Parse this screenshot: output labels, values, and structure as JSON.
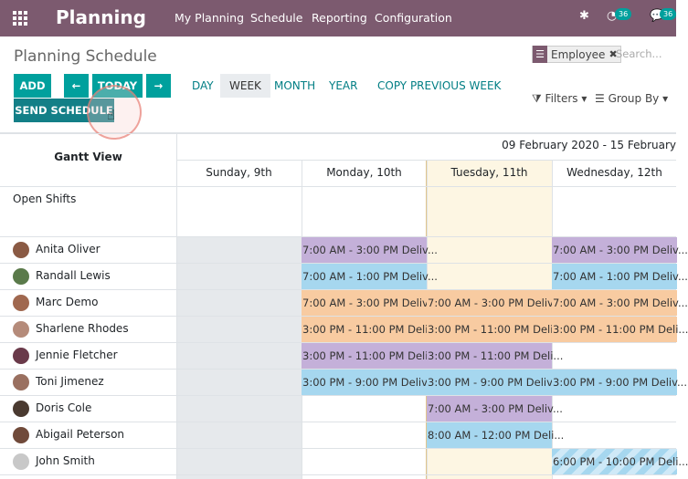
{
  "topbar": {
    "brand": "Planning",
    "menu": [
      "My Planning",
      "Schedule",
      "Reporting",
      "Configuration"
    ],
    "activity_count": "36",
    "messages_count": "36"
  },
  "control_panel": {
    "title": "Planning Schedule",
    "facet": "Employee",
    "search_placeholder": "Search...",
    "buttons": {
      "add": "ADD",
      "prev": "←",
      "today": "TODAY",
      "next": "→",
      "send": "SEND SCHEDULE"
    },
    "ranges": [
      "DAY",
      "WEEK",
      "MONTH",
      "YEAR"
    ],
    "active_range": "WEEK",
    "copy_week": "COPY PREVIOUS WEEK",
    "filters": "Filters",
    "group_by": "Group By"
  },
  "gantt": {
    "view_label": "Gantt View",
    "range_label": "09 February 2020 - 15 February",
    "days": [
      "Sunday, 9th",
      "Monday, 10th",
      "Tuesday, 11th",
      "Wednesday, 12th"
    ],
    "open_shifts": "Open Shifts",
    "rows": [
      {
        "name": "Anita Oliver",
        "avatar": "#8a5a44",
        "shifts": [
          {
            "day": 1,
            "text": "7:00 AM - 3:00 PM Deliv...",
            "color": "pur"
          },
          {
            "day": 3,
            "text": "7:00 AM - 3:00 PM Deliv...",
            "color": "pur"
          }
        ]
      },
      {
        "name": "Randall Lewis",
        "avatar": "#5a7a4a",
        "shifts": [
          {
            "day": 1,
            "text": "7:00 AM - 1:00 PM Deliv...",
            "color": "blu"
          },
          {
            "day": 3,
            "text": "7:00 AM - 1:00 PM Deliv...",
            "color": "blu"
          }
        ]
      },
      {
        "name": "Marc Demo",
        "avatar": "#a0684f",
        "shifts": [
          {
            "day": 1,
            "text": "7:00 AM - 3:00 PM Deliv...",
            "color": "org"
          },
          {
            "day": 2,
            "text": "7:00 AM - 3:00 PM Deliv...",
            "color": "org"
          },
          {
            "day": 3,
            "text": "7:00 AM - 3:00 PM Deliv...",
            "color": "org"
          }
        ]
      },
      {
        "name": "Sharlene Rhodes",
        "avatar": "#b58b7a",
        "shifts": [
          {
            "day": 1,
            "text": "3:00 PM - 11:00 PM Deli...",
            "color": "org"
          },
          {
            "day": 2,
            "text": "3:00 PM - 11:00 PM Deli...",
            "color": "org"
          },
          {
            "day": 3,
            "text": "3:00 PM - 11:00 PM Deli...",
            "color": "org"
          }
        ]
      },
      {
        "name": "Jennie Fletcher",
        "avatar": "#6a3a4a",
        "shifts": [
          {
            "day": 1,
            "text": "3:00 PM - 11:00 PM Deli...",
            "color": "pur"
          },
          {
            "day": 2,
            "text": "3:00 PM - 11:00 PM Deli...",
            "color": "pur"
          }
        ]
      },
      {
        "name": "Toni Jimenez",
        "avatar": "#9a7060",
        "shifts": [
          {
            "day": 1,
            "text": "3:00 PM - 9:00 PM Deliv...",
            "color": "blu"
          },
          {
            "day": 2,
            "text": "3:00 PM - 9:00 PM Deliv...",
            "color": "blu"
          },
          {
            "day": 3,
            "text": "3:00 PM - 9:00 PM Deliv...",
            "color": "blu"
          }
        ]
      },
      {
        "name": "Doris Cole",
        "avatar": "#4a3a30",
        "shifts": [
          {
            "day": 2,
            "text": "7:00 AM - 3:00 PM Deliv...",
            "color": "pur"
          }
        ]
      },
      {
        "name": "Abigail Peterson",
        "avatar": "#704a3a",
        "shifts": [
          {
            "day": 2,
            "text": "8:00 AM - 12:00 PM Deli...",
            "color": "blu"
          }
        ]
      },
      {
        "name": "John Smith",
        "avatar": "#c8c8c8",
        "shifts": [
          {
            "day": 3,
            "text": "6:00 PM - 10:00 PM Deli...",
            "color": "str"
          }
        ]
      }
    ]
  }
}
